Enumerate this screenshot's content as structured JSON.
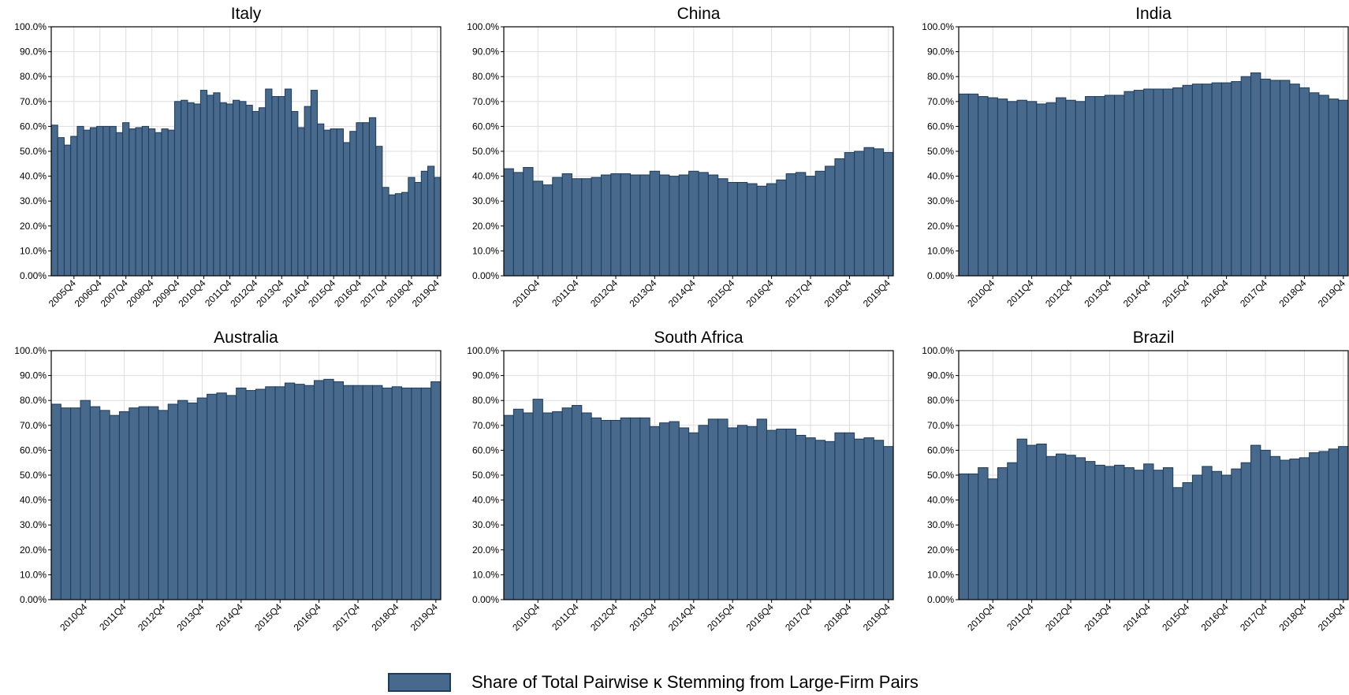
{
  "colors": {
    "bar_fill": "#46698c",
    "bar_stroke": "#1d3b5c",
    "grid": "#dddddd",
    "frame": "#000000"
  },
  "legend": {
    "label": "Share of Total Pairwise κ Stemming from Large-Firm Pairs"
  },
  "chart_data": [
    {
      "type": "bar",
      "title": "Italy",
      "ylim": [
        0,
        100
      ],
      "yticks": [
        0,
        10,
        20,
        30,
        40,
        50,
        60,
        70,
        80,
        90,
        100
      ],
      "ytick_labels": [
        "0.00%",
        "10.0%",
        "20.0%",
        "30.0%",
        "40.0%",
        "50.0%",
        "60.0%",
        "70.0%",
        "80.0%",
        "90.0%",
        "100.0%"
      ],
      "grid": true,
      "xtick_labels": [
        "2005Q4",
        "2006Q4",
        "2007Q4",
        "2008Q4",
        "2009Q4",
        "2010Q4",
        "2011Q4",
        "2012Q4",
        "2013Q4",
        "2014Q4",
        "2015Q4",
        "2016Q4",
        "2017Q4",
        "2018Q4",
        "2019Q4"
      ],
      "first_period": "2005Q1",
      "values": [
        60.5,
        55.5,
        52.5,
        56,
        60,
        58.5,
        59.5,
        60,
        60,
        60,
        57.5,
        61.5,
        59,
        59.5,
        60,
        59,
        57.5,
        59,
        58.5,
        70,
        70.5,
        69.5,
        69,
        74.5,
        72.5,
        73.5,
        69.5,
        69,
        70.5,
        70,
        68.5,
        66,
        67.5,
        75,
        72,
        72,
        75,
        66,
        59.5,
        68,
        74.5,
        61,
        58.5,
        59,
        59,
        53.5,
        58,
        61.5,
        61.5,
        63.5,
        52,
        35.5,
        32.5,
        33,
        33.5,
        39.5,
        37.5,
        42,
        44,
        39.5
      ]
    },
    {
      "type": "bar",
      "title": "China",
      "ylim": [
        0,
        100
      ],
      "yticks": [
        0,
        10,
        20,
        30,
        40,
        50,
        60,
        70,
        80,
        90,
        100
      ],
      "ytick_labels": [
        "0.00%",
        "10.0%",
        "20.0%",
        "30.0%",
        "40.0%",
        "50.0%",
        "60.0%",
        "70.0%",
        "80.0%",
        "90.0%",
        "100.0%"
      ],
      "grid": true,
      "xtick_labels": [
        "2010Q4",
        "2011Q4",
        "2012Q4",
        "2013Q4",
        "2014Q4",
        "2015Q4",
        "2016Q4",
        "2017Q4",
        "2018Q4",
        "2019Q4"
      ],
      "first_period": "2010Q1",
      "values": [
        43,
        41.5,
        43.5,
        38,
        36.5,
        39.5,
        41,
        39,
        39,
        39.5,
        40.5,
        41,
        41,
        40.5,
        40.5,
        42,
        40.5,
        40,
        40.5,
        42,
        41.5,
        40.5,
        39,
        37.5,
        37.5,
        37,
        36,
        37,
        38.5,
        41,
        41.5,
        40,
        42,
        44,
        47,
        49.5,
        50,
        51.5,
        51,
        49.5
      ]
    },
    {
      "type": "bar",
      "title": "India",
      "ylim": [
        0,
        100
      ],
      "yticks": [
        0,
        10,
        20,
        30,
        40,
        50,
        60,
        70,
        80,
        90,
        100
      ],
      "ytick_labels": [
        "0.00%",
        "10.0%",
        "20.0%",
        "30.0%",
        "40.0%",
        "50.0%",
        "60.0%",
        "70.0%",
        "80.0%",
        "90.0%",
        "100.0%"
      ],
      "grid": true,
      "xtick_labels": [
        "2010Q4",
        "2011Q4",
        "2012Q4",
        "2013Q4",
        "2014Q4",
        "2015Q4",
        "2016Q4",
        "2017Q4",
        "2018Q4",
        "2019Q4"
      ],
      "first_period": "2010Q1",
      "values": [
        73,
        73,
        72,
        71.5,
        71,
        70,
        70.5,
        70,
        69,
        69.5,
        71.5,
        70.5,
        70,
        72,
        72,
        72.5,
        72.5,
        74,
        74.5,
        75,
        75,
        75,
        75.5,
        76.5,
        77,
        77,
        77.5,
        77.5,
        78,
        80,
        81.5,
        79,
        78.5,
        78.5,
        77,
        75.5,
        73.5,
        72.5,
        71,
        70.5
      ]
    },
    {
      "type": "bar",
      "title": "Australia",
      "ylim": [
        0,
        100
      ],
      "yticks": [
        0,
        10,
        20,
        30,
        40,
        50,
        60,
        70,
        80,
        90,
        100
      ],
      "ytick_labels": [
        "0.00%",
        "10.0%",
        "20.0%",
        "30.0%",
        "40.0%",
        "50.0%",
        "60.0%",
        "70.0%",
        "80.0%",
        "90.0%",
        "100.0%"
      ],
      "grid": true,
      "xtick_labels": [
        "2010Q4",
        "2011Q4",
        "2012Q4",
        "2013Q4",
        "2014Q4",
        "2015Q4",
        "2016Q4",
        "2017Q4",
        "2018Q4",
        "2019Q4"
      ],
      "first_period": "2010Q1",
      "values": [
        78.5,
        77,
        77,
        80,
        77.5,
        76,
        74,
        75.5,
        77,
        77.5,
        77.5,
        76,
        78.5,
        80,
        79,
        81,
        82.5,
        83,
        82,
        85,
        84,
        84.5,
        85.5,
        85.5,
        87,
        86.5,
        86,
        88,
        88.5,
        87.5,
        86,
        86,
        86,
        86,
        85,
        85.5,
        85,
        85,
        85,
        87.5
      ]
    },
    {
      "type": "bar",
      "title": "South Africa",
      "ylim": [
        0,
        100
      ],
      "yticks": [
        0,
        10,
        20,
        30,
        40,
        50,
        60,
        70,
        80,
        90,
        100
      ],
      "ytick_labels": [
        "0.00%",
        "10.0%",
        "20.0%",
        "30.0%",
        "40.0%",
        "50.0%",
        "60.0%",
        "70.0%",
        "80.0%",
        "90.0%",
        "100.0%"
      ],
      "grid": true,
      "xtick_labels": [
        "2010Q4",
        "2011Q4",
        "2012Q4",
        "2013Q4",
        "2014Q4",
        "2015Q4",
        "2016Q4",
        "2017Q4",
        "2018Q4",
        "2019Q4"
      ],
      "first_period": "2010Q1",
      "values": [
        74,
        76.5,
        75,
        80.5,
        75,
        75.5,
        77,
        78,
        75,
        73,
        72,
        72,
        73,
        73,
        73,
        69.5,
        71,
        71.5,
        69,
        67,
        70,
        72.5,
        72.5,
        69,
        70,
        69.5,
        72.5,
        68,
        68.5,
        68.5,
        66,
        65,
        64,
        63.5,
        67,
        67,
        64.5,
        65,
        64,
        61.5
      ]
    },
    {
      "type": "bar",
      "title": "Brazil",
      "ylim": [
        0,
        100
      ],
      "yticks": [
        0,
        10,
        20,
        30,
        40,
        50,
        60,
        70,
        80,
        90,
        100
      ],
      "ytick_labels": [
        "0.00%",
        "10.0%",
        "20.0%",
        "30.0%",
        "40.0%",
        "50.0%",
        "60.0%",
        "70.0%",
        "80.0%",
        "90.0%",
        "100.0%"
      ],
      "grid": true,
      "xtick_labels": [
        "2010Q4",
        "2011Q4",
        "2012Q4",
        "2013Q4",
        "2014Q4",
        "2015Q4",
        "2016Q4",
        "2017Q4",
        "2018Q4",
        "2019Q4"
      ],
      "first_period": "2010Q1",
      "values": [
        50.5,
        50.5,
        53,
        48.5,
        53,
        55,
        64.5,
        62,
        62.5,
        57.5,
        58.5,
        58,
        57,
        55.5,
        54,
        53.5,
        54,
        53,
        52,
        54.5,
        52,
        53,
        45,
        47,
        50,
        53.5,
        51.5,
        50,
        52.5,
        55,
        62,
        60,
        57.5,
        56,
        56.5,
        57,
        59,
        59.5,
        60.5,
        61.5
      ]
    }
  ]
}
